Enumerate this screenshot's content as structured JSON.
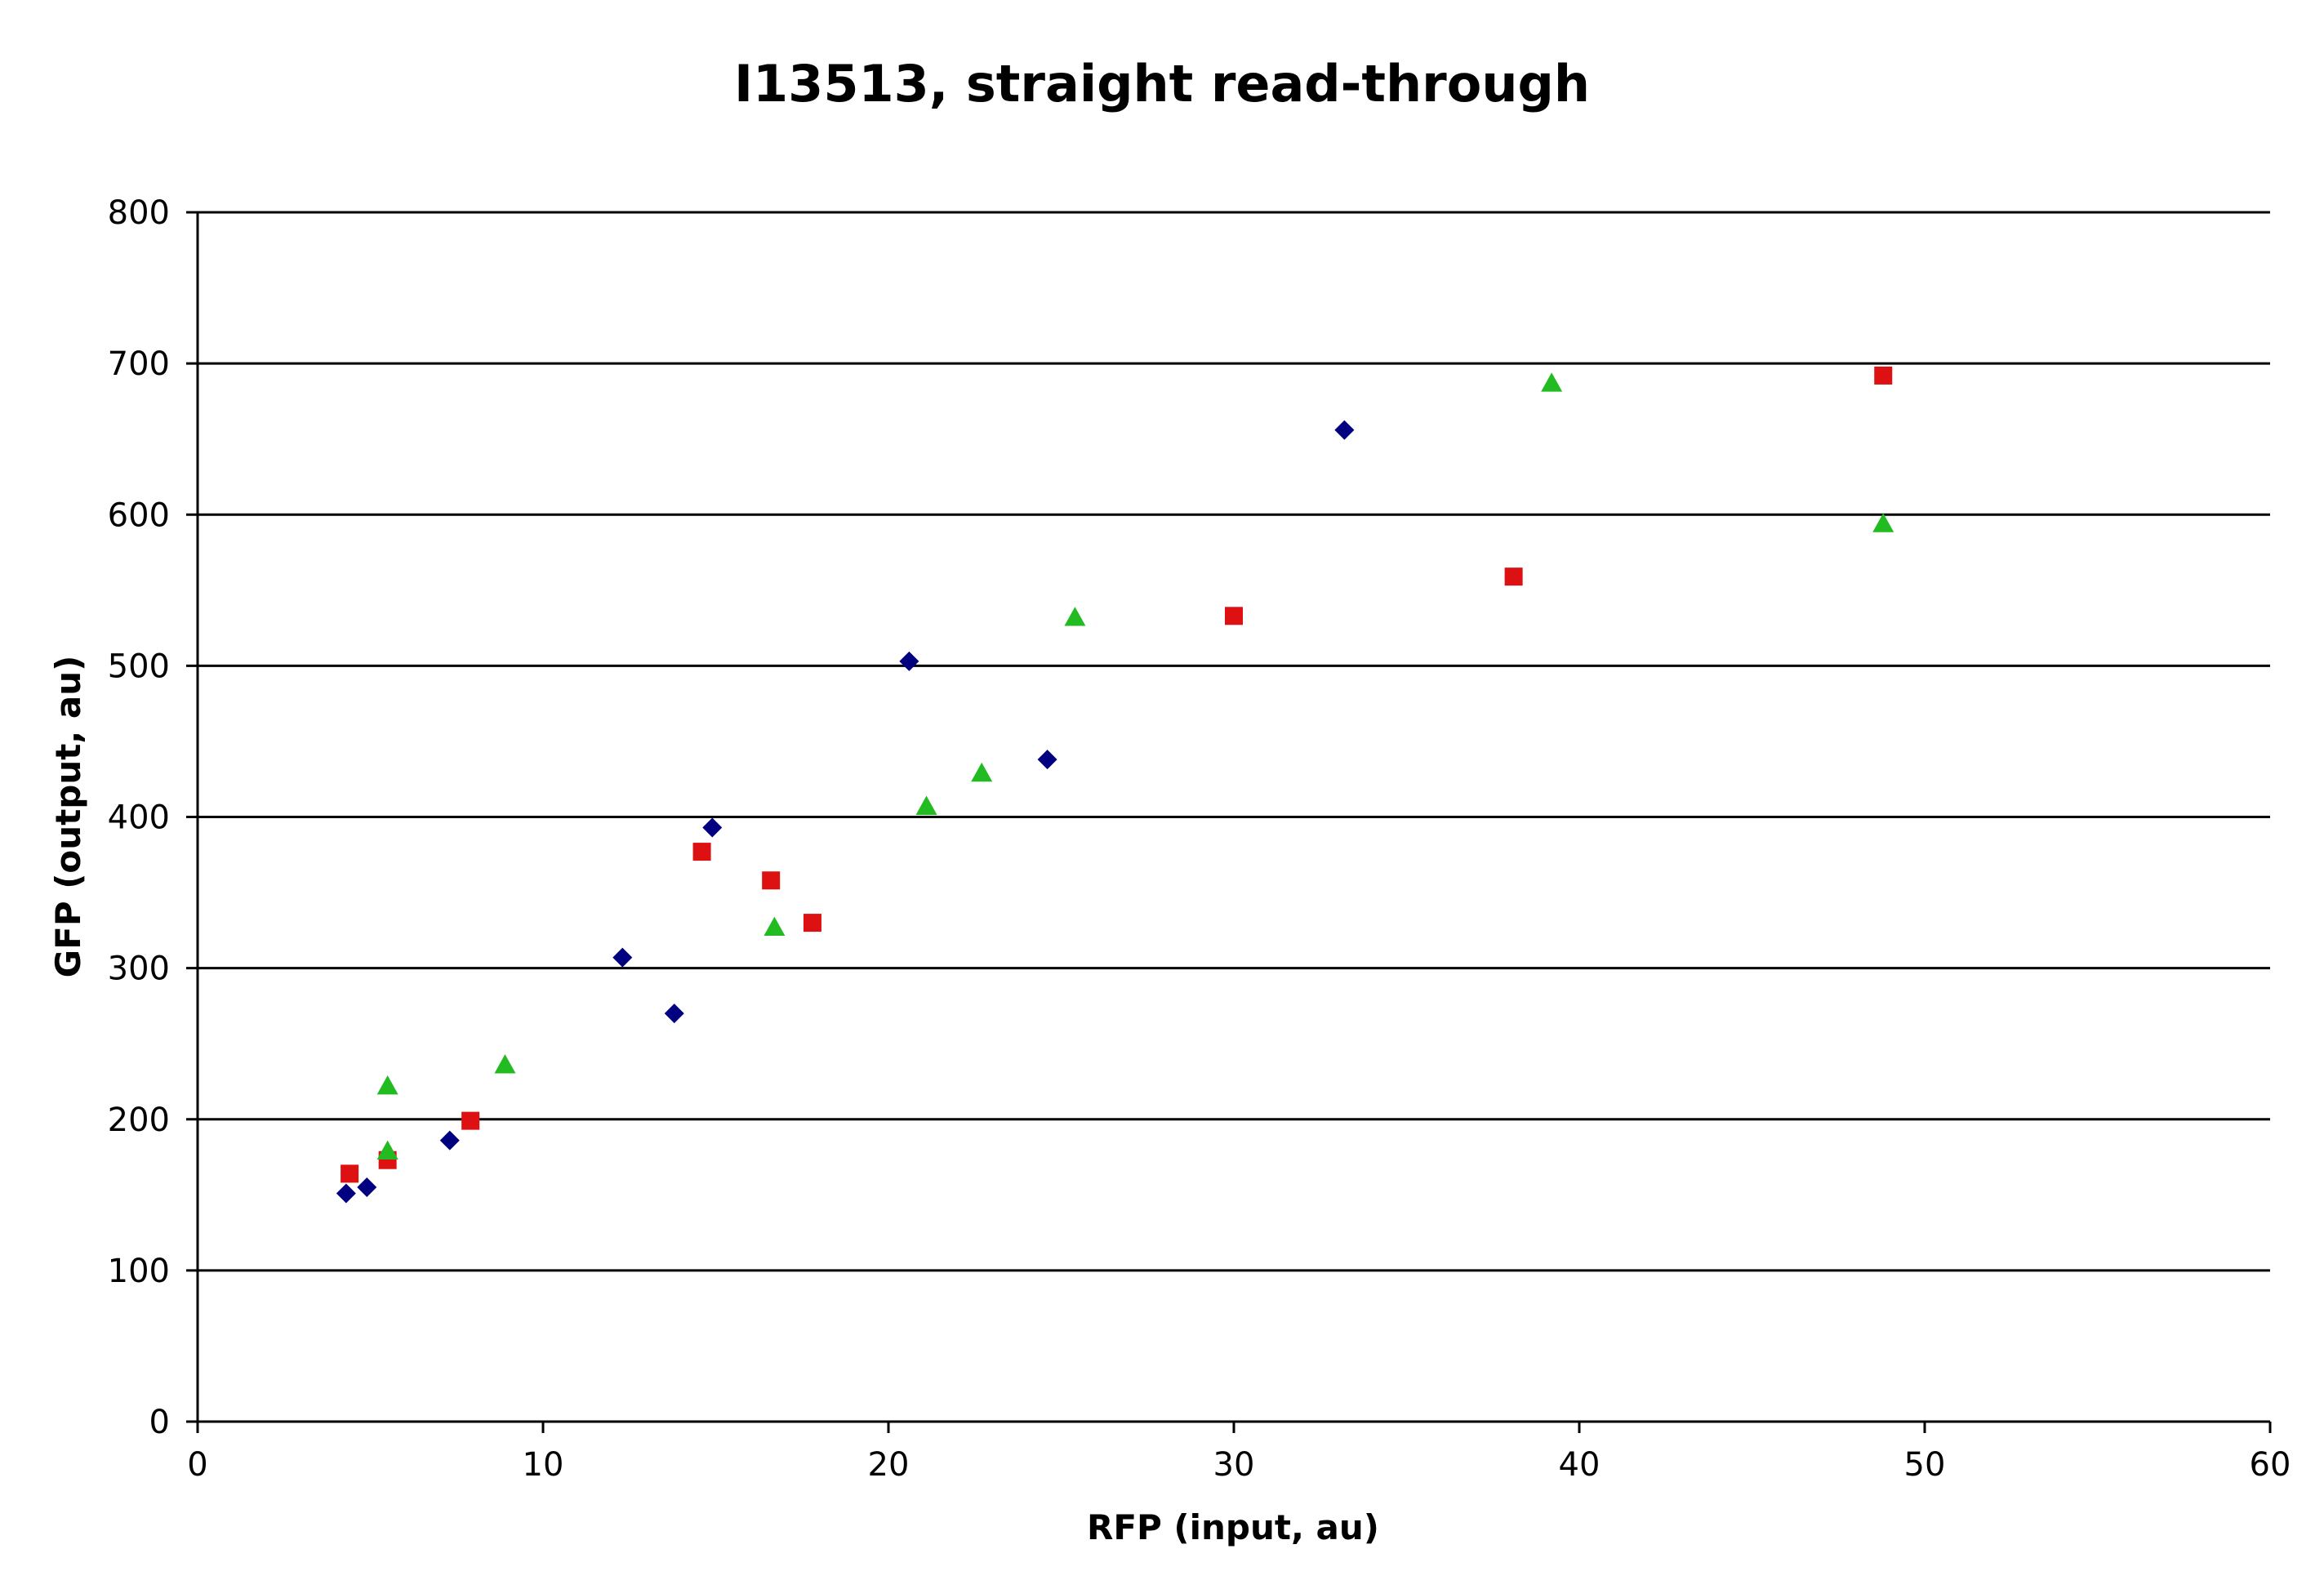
{
  "chart_data": {
    "type": "scatter",
    "title": "I13513, straight read-through",
    "xlabel": "RFP (input, au)",
    "ylabel": "GFP (output, au)",
    "xlim": [
      0,
      60
    ],
    "ylim": [
      0,
      800
    ],
    "xticks": [
      0,
      10,
      20,
      30,
      40,
      50,
      60
    ],
    "yticks": [
      0,
      100,
      200,
      300,
      400,
      500,
      600,
      700,
      800
    ],
    "grid": "horizontal",
    "legend": "none",
    "series": [
      {
        "marker": "diamond",
        "color": "#000080",
        "points": [
          {
            "x": 4.3,
            "y": 151
          },
          {
            "x": 4.9,
            "y": 155
          },
          {
            "x": 7.3,
            "y": 186
          },
          {
            "x": 12.3,
            "y": 307
          },
          {
            "x": 13.8,
            "y": 270
          },
          {
            "x": 14.9,
            "y": 393
          },
          {
            "x": 20.6,
            "y": 503
          },
          {
            "x": 24.6,
            "y": 438
          },
          {
            "x": 33.2,
            "y": 656
          }
        ]
      },
      {
        "marker": "square",
        "color": "#dd1111",
        "points": [
          {
            "x": 4.4,
            "y": 164
          },
          {
            "x": 5.5,
            "y": 173
          },
          {
            "x": 7.9,
            "y": 199
          },
          {
            "x": 14.6,
            "y": 377
          },
          {
            "x": 16.6,
            "y": 358
          },
          {
            "x": 17.8,
            "y": 330
          },
          {
            "x": 30.0,
            "y": 533
          },
          {
            "x": 38.1,
            "y": 559
          },
          {
            "x": 48.8,
            "y": 692
          }
        ]
      },
      {
        "marker": "triangle",
        "color": "#22bb22",
        "points": [
          {
            "x": 5.5,
            "y": 222
          },
          {
            "x": 5.5,
            "y": 179
          },
          {
            "x": 8.9,
            "y": 236
          },
          {
            "x": 16.7,
            "y": 327
          },
          {
            "x": 21.1,
            "y": 407
          },
          {
            "x": 22.7,
            "y": 429
          },
          {
            "x": 25.4,
            "y": 532
          },
          {
            "x": 39.2,
            "y": 687
          },
          {
            "x": 48.8,
            "y": 594
          }
        ]
      }
    ]
  }
}
